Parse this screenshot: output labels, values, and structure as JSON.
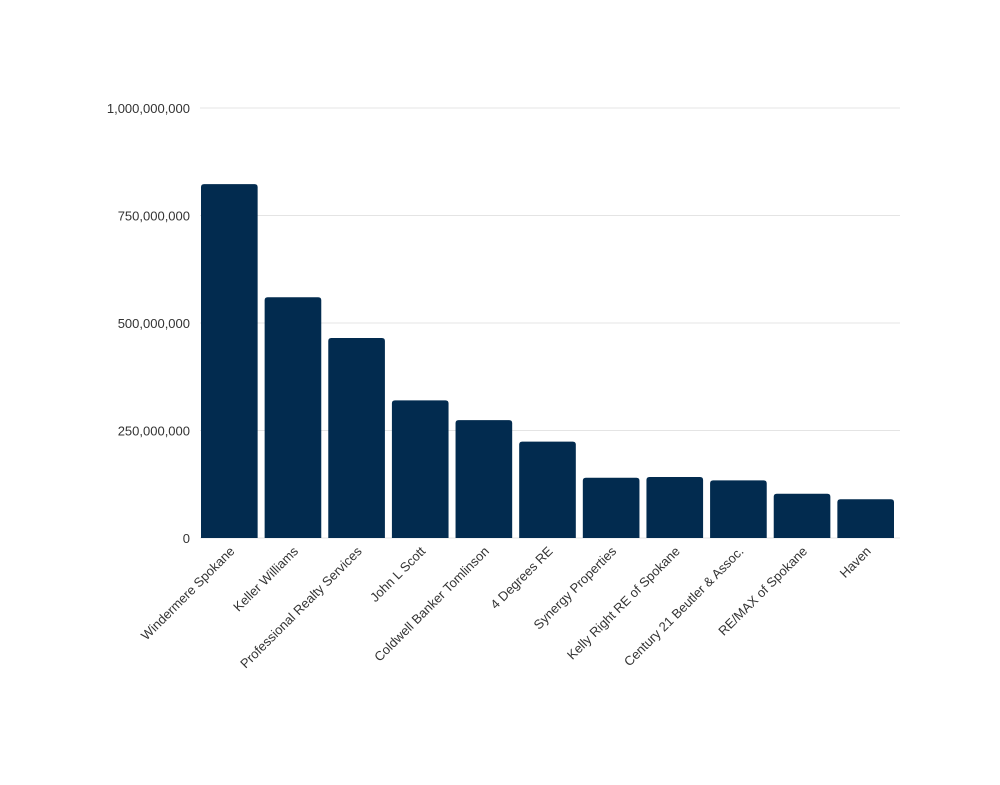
{
  "chart_data": {
    "type": "bar",
    "title": "",
    "xlabel": "",
    "ylabel": "",
    "ylim": [
      0,
      1000000000
    ],
    "grid": true,
    "categories": [
      "Windermere Spokane",
      "Keller Williams",
      "Professional Realty Services",
      "John L Scott",
      "Coldwell Banker Tomlinson",
      "4 Degrees RE",
      "Synergy Properties",
      "Kelly Right RE of Spokane",
      "Century 21 Beutler & Assoc.",
      "RE/MAX of Spokane",
      "Haven"
    ],
    "values": [
      823000000,
      560000000,
      465000000,
      320000000,
      274000000,
      224000000,
      140000000,
      142000000,
      134000000,
      103000000,
      90000000
    ],
    "yticks": [
      0,
      250000000,
      500000000,
      750000000,
      1000000000
    ],
    "ytick_labels": [
      "0",
      "250,000,000",
      "500,000,000",
      "750,000,000",
      "1,000,000,000"
    ],
    "colors": {
      "bar": "#022b4f",
      "grid": "#e4e4e4",
      "text": "#333333"
    }
  }
}
